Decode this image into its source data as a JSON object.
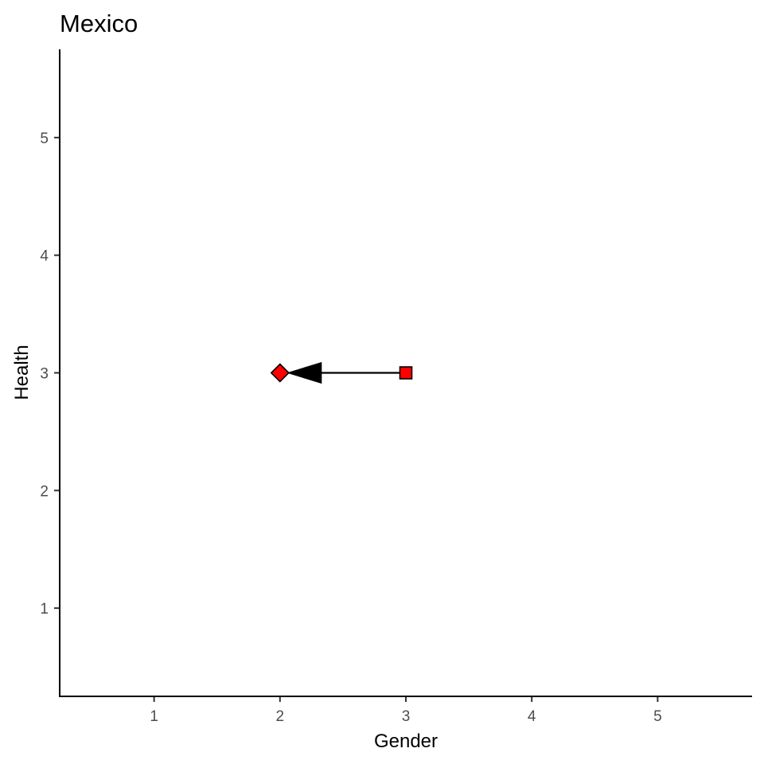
{
  "chart_data": {
    "type": "scatter",
    "title": "Mexico",
    "xlabel": "Gender",
    "ylabel": "Health",
    "xlim": [
      0.25,
      5.75
    ],
    "ylim": [
      0.25,
      5.75
    ],
    "x_ticks": [
      1,
      2,
      3,
      4,
      5
    ],
    "y_ticks": [
      1,
      2,
      3,
      4,
      5
    ],
    "grid": false,
    "legend": "none",
    "points": [
      {
        "x": 3,
        "y": 3,
        "shape": "square",
        "color": "#ff0000"
      },
      {
        "x": 2,
        "y": 3,
        "shape": "diamond",
        "color": "#ff0000"
      }
    ],
    "arrows": [
      {
        "from": {
          "x": 3,
          "y": 3
        },
        "to": {
          "x": 2,
          "y": 3
        },
        "color": "#000000"
      }
    ]
  }
}
